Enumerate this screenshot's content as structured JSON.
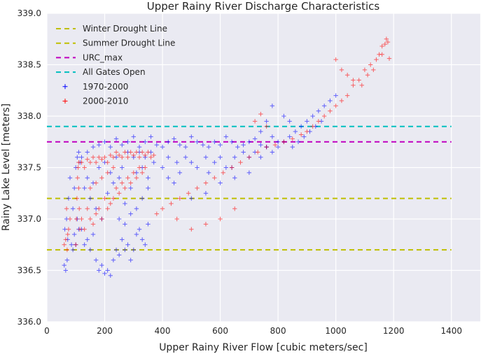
{
  "chart_data": {
    "type": "scatter",
    "title": "Upper Rainy River Discharge Characteristics",
    "xlabel": "Upper Rainy River Flow [cubic meters/sec]",
    "ylabel": "Rainy Lake Level [meters]",
    "xlim": [
      0,
      1500
    ],
    "ylim": [
      336.0,
      339.0
    ],
    "xticks": [
      0,
      200,
      400,
      600,
      800,
      1000,
      1200,
      1400
    ],
    "yticks": [
      336.0,
      336.5,
      337.0,
      337.5,
      338.0,
      338.5,
      339.0
    ],
    "xtick_labels": [
      "0",
      "200",
      "400",
      "600",
      "800",
      "1000",
      "1200",
      "1400"
    ],
    "ytick_labels": [
      "336.0",
      "336.5",
      "337.0",
      "337.5",
      "338.0",
      "338.5",
      "339.0"
    ],
    "grid": true,
    "legend_position": "top-left",
    "background": "#eaeaf2",
    "lines": [
      {
        "name": "Winter Drought Line",
        "y": 336.7,
        "x_range": [
          0,
          1400
        ],
        "color": "#bfbf00",
        "style": "dashed"
      },
      {
        "name": "Summer Drought Line",
        "y": 337.2,
        "x_range": [
          0,
          1400
        ],
        "color": "#bfbf00",
        "style": "dashed"
      },
      {
        "name": "URC_max",
        "y": 337.75,
        "x_range": [
          0,
          1400
        ],
        "color": "#bf00bf",
        "style": "dashed"
      },
      {
        "name": "All Gates Open",
        "y": 337.9,
        "x_range": [
          0,
          1400
        ],
        "color": "#00bfbf",
        "style": "dashed"
      }
    ],
    "series": [
      {
        "name": "1970-2000",
        "color": "#0000ff",
        "marker": "+",
        "points": [
          [
            60,
            336.55
          ],
          [
            65,
            336.5
          ],
          [
            70,
            336.6
          ],
          [
            72,
            336.8
          ],
          [
            68,
            337.0
          ],
          [
            75,
            337.2
          ],
          [
            80,
            337.4
          ],
          [
            62,
            336.9
          ],
          [
            85,
            336.75
          ],
          [
            90,
            337.1
          ],
          [
            95,
            337.3
          ],
          [
            100,
            337.5
          ],
          [
            105,
            337.6
          ],
          [
            110,
            337.65
          ],
          [
            115,
            337.55
          ],
          [
            120,
            336.9
          ],
          [
            130,
            336.75
          ],
          [
            140,
            336.8
          ],
          [
            150,
            336.7
          ],
          [
            160,
            336.85
          ],
          [
            170,
            336.6
          ],
          [
            180,
            336.5
          ],
          [
            190,
            336.55
          ],
          [
            200,
            336.47
          ],
          [
            210,
            336.5
          ],
          [
            220,
            336.45
          ],
          [
            230,
            336.6
          ],
          [
            240,
            336.7
          ],
          [
            250,
            336.65
          ],
          [
            260,
            336.8
          ],
          [
            270,
            336.7
          ],
          [
            280,
            336.75
          ],
          [
            290,
            336.6
          ],
          [
            300,
            336.7
          ],
          [
            310,
            336.85
          ],
          [
            320,
            336.9
          ],
          [
            330,
            336.8
          ],
          [
            340,
            336.75
          ],
          [
            350,
            336.95
          ],
          [
            120,
            337.6
          ],
          [
            140,
            337.65
          ],
          [
            160,
            337.7
          ],
          [
            180,
            337.72
          ],
          [
            200,
            337.75
          ],
          [
            220,
            337.7
          ],
          [
            240,
            337.78
          ],
          [
            260,
            337.72
          ],
          [
            280,
            337.75
          ],
          [
            300,
            337.8
          ],
          [
            320,
            337.7
          ],
          [
            340,
            337.75
          ],
          [
            360,
            337.8
          ],
          [
            380,
            337.72
          ],
          [
            400,
            337.7
          ],
          [
            420,
            337.75
          ],
          [
            440,
            337.78
          ],
          [
            460,
            337.72
          ],
          [
            480,
            337.7
          ],
          [
            500,
            337.8
          ],
          [
            520,
            337.75
          ],
          [
            540,
            337.72
          ],
          [
            560,
            337.7
          ],
          [
            580,
            337.75
          ],
          [
            600,
            337.72
          ],
          [
            620,
            337.8
          ],
          [
            640,
            337.75
          ],
          [
            660,
            337.7
          ],
          [
            680,
            337.72
          ],
          [
            700,
            337.75
          ],
          [
            720,
            337.78
          ],
          [
            740,
            337.72
          ],
          [
            760,
            337.7
          ],
          [
            780,
            337.8
          ],
          [
            800,
            337.75
          ],
          [
            130,
            337.3
          ],
          [
            150,
            337.2
          ],
          [
            170,
            337.1
          ],
          [
            190,
            337.0
          ],
          [
            210,
            337.25
          ],
          [
            230,
            337.35
          ],
          [
            250,
            337.4
          ],
          [
            270,
            337.15
          ],
          [
            290,
            337.3
          ],
          [
            310,
            337.45
          ],
          [
            330,
            337.5
          ],
          [
            350,
            337.4
          ],
          [
            370,
            337.55
          ],
          [
            400,
            337.5
          ],
          [
            420,
            337.6
          ],
          [
            450,
            337.55
          ],
          [
            480,
            337.6
          ],
          [
            500,
            337.55
          ],
          [
            520,
            337.5
          ],
          [
            550,
            337.6
          ],
          [
            580,
            337.55
          ],
          [
            600,
            337.6
          ],
          [
            620,
            337.5
          ],
          [
            650,
            337.6
          ],
          [
            680,
            337.65
          ],
          [
            700,
            337.6
          ],
          [
            720,
            337.65
          ],
          [
            740,
            337.6
          ],
          [
            760,
            337.7
          ],
          [
            780,
            337.65
          ],
          [
            800,
            337.7
          ],
          [
            820,
            337.75
          ],
          [
            840,
            337.8
          ],
          [
            860,
            337.85
          ],
          [
            880,
            337.9
          ],
          [
            900,
            337.95
          ],
          [
            920,
            338.0
          ],
          [
            940,
            338.05
          ],
          [
            960,
            338.1
          ],
          [
            980,
            338.15
          ],
          [
            1000,
            338.2
          ],
          [
            850,
            337.7
          ],
          [
            870,
            337.75
          ],
          [
            890,
            337.8
          ],
          [
            910,
            337.85
          ],
          [
            930,
            337.9
          ],
          [
            950,
            337.95
          ],
          [
            780,
            338.1
          ],
          [
            760,
            337.95
          ],
          [
            740,
            337.85
          ],
          [
            820,
            338.0
          ],
          [
            840,
            337.95
          ],
          [
            500,
            337.2
          ],
          [
            550,
            337.25
          ],
          [
            600,
            337.35
          ],
          [
            650,
            337.4
          ],
          [
            700,
            337.45
          ],
          [
            100,
            336.75
          ],
          [
            110,
            336.9
          ],
          [
            105,
            337.0
          ],
          [
            90,
            336.7
          ],
          [
            95,
            336.85
          ],
          [
            250,
            337.0
          ],
          [
            270,
            336.95
          ],
          [
            290,
            337.05
          ],
          [
            310,
            337.1
          ],
          [
            330,
            337.2
          ],
          [
            350,
            337.3
          ],
          [
            180,
            337.5
          ],
          [
            200,
            337.55
          ],
          [
            220,
            337.45
          ],
          [
            240,
            337.6
          ],
          [
            260,
            337.5
          ],
          [
            280,
            337.65
          ],
          [
            140,
            337.4
          ],
          [
            160,
            337.35
          ],
          [
            300,
            337.6
          ],
          [
            320,
            337.65
          ],
          [
            340,
            337.6
          ],
          [
            360,
            337.65
          ],
          [
            420,
            337.4
          ],
          [
            460,
            337.45
          ],
          [
            440,
            337.35
          ],
          [
            560,
            337.45
          ],
          [
            640,
            337.5
          ]
        ]
      },
      {
        "name": "2000-2010",
        "color": "#ff0000",
        "marker": "+",
        "points": [
          [
            60,
            336.75
          ],
          [
            65,
            336.8
          ],
          [
            70,
            336.7
          ],
          [
            75,
            336.9
          ],
          [
            80,
            337.0
          ],
          [
            72,
            336.85
          ],
          [
            68,
            337.1
          ],
          [
            100,
            336.75
          ],
          [
            102,
            337.0
          ],
          [
            104,
            337.2
          ],
          [
            106,
            337.4
          ],
          [
            108,
            337.5
          ],
          [
            110,
            337.55
          ],
          [
            120,
            337.55
          ],
          [
            130,
            337.5
          ],
          [
            140,
            337.58
          ],
          [
            150,
            337.55
          ],
          [
            160,
            337.6
          ],
          [
            170,
            337.55
          ],
          [
            180,
            337.6
          ],
          [
            190,
            337.58
          ],
          [
            200,
            337.6
          ],
          [
            210,
            337.55
          ],
          [
            220,
            337.62
          ],
          [
            230,
            337.6
          ],
          [
            240,
            337.65
          ],
          [
            250,
            337.62
          ],
          [
            260,
            337.6
          ],
          [
            270,
            337.65
          ],
          [
            280,
            337.6
          ],
          [
            290,
            337.65
          ],
          [
            300,
            337.62
          ],
          [
            310,
            337.65
          ],
          [
            320,
            337.6
          ],
          [
            330,
            337.65
          ],
          [
            340,
            337.62
          ],
          [
            350,
            337.65
          ],
          [
            360,
            337.6
          ],
          [
            370,
            337.62
          ],
          [
            120,
            337.0
          ],
          [
            130,
            336.9
          ],
          [
            140,
            337.1
          ],
          [
            150,
            337.0
          ],
          [
            160,
            336.95
          ],
          [
            170,
            337.05
          ],
          [
            180,
            337.1
          ],
          [
            190,
            337.0
          ],
          [
            200,
            337.2
          ],
          [
            210,
            337.1
          ],
          [
            220,
            337.15
          ],
          [
            230,
            337.2
          ],
          [
            240,
            337.3
          ],
          [
            250,
            337.25
          ],
          [
            260,
            337.35
          ],
          [
            270,
            337.3
          ],
          [
            280,
            337.4
          ],
          [
            290,
            337.35
          ],
          [
            300,
            337.45
          ],
          [
            310,
            337.4
          ],
          [
            320,
            337.5
          ],
          [
            330,
            337.45
          ],
          [
            340,
            337.5
          ],
          [
            150,
            337.3
          ],
          [
            170,
            337.35
          ],
          [
            190,
            337.4
          ],
          [
            210,
            337.45
          ],
          [
            230,
            337.5
          ],
          [
            380,
            337.05
          ],
          [
            400,
            337.1
          ],
          [
            430,
            337.15
          ],
          [
            460,
            337.2
          ],
          [
            490,
            337.25
          ],
          [
            520,
            337.3
          ],
          [
            550,
            337.35
          ],
          [
            580,
            337.4
          ],
          [
            610,
            337.45
          ],
          [
            640,
            337.5
          ],
          [
            670,
            337.55
          ],
          [
            700,
            337.6
          ],
          [
            730,
            337.65
          ],
          [
            760,
            337.7
          ],
          [
            790,
            337.72
          ],
          [
            820,
            337.75
          ],
          [
            850,
            337.78
          ],
          [
            880,
            337.82
          ],
          [
            900,
            337.85
          ],
          [
            920,
            337.9
          ],
          [
            940,
            337.95
          ],
          [
            960,
            338.0
          ],
          [
            980,
            338.05
          ],
          [
            1000,
            338.1
          ],
          [
            1020,
            338.15
          ],
          [
            1040,
            338.2
          ],
          [
            1060,
            338.3
          ],
          [
            1080,
            338.35
          ],
          [
            1100,
            338.45
          ],
          [
            1120,
            338.5
          ],
          [
            1140,
            338.55
          ],
          [
            1160,
            338.6
          ],
          [
            1170,
            338.7
          ],
          [
            1175,
            338.75
          ],
          [
            1180,
            338.72
          ],
          [
            1185,
            338.56
          ],
          [
            1160,
            338.68
          ],
          [
            1150,
            338.6
          ],
          [
            1130,
            338.45
          ],
          [
            1110,
            338.4
          ],
          [
            1090,
            338.3
          ],
          [
            1000,
            338.55
          ],
          [
            1020,
            338.45
          ],
          [
            1040,
            338.4
          ],
          [
            1060,
            338.35
          ],
          [
            720,
            337.95
          ],
          [
            740,
            338.02
          ],
          [
            760,
            337.9
          ],
          [
            550,
            336.95
          ],
          [
            600,
            337.0
          ],
          [
            650,
            337.1
          ],
          [
            500,
            336.9
          ],
          [
            450,
            337.0
          ],
          [
            110,
            337.3
          ],
          [
            112,
            337.1
          ],
          [
            114,
            336.9
          ]
        ]
      }
    ]
  }
}
